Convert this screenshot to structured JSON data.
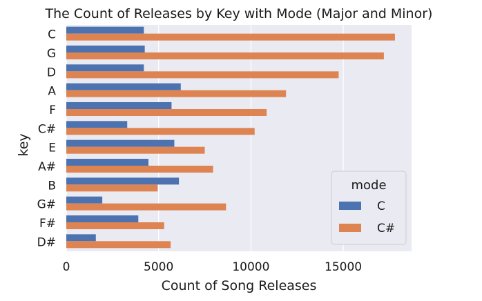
{
  "chart_data": {
    "type": "bar",
    "orientation": "horizontal",
    "title": "The Count of Releases by Key with Mode (Major and Minor)",
    "xlabel": "Count of Song Releases",
    "ylabel": "key",
    "xlim": [
      0,
      18700
    ],
    "xticks": [
      0,
      5000,
      10000,
      15000
    ],
    "grid": true,
    "categories": [
      "C",
      "G",
      "D",
      "A",
      "F",
      "C#",
      "E",
      "A#",
      "B",
      "G#",
      "F#",
      "D#"
    ],
    "legend": {
      "title": "mode",
      "placement": "lower-right"
    },
    "series": [
      {
        "name": "C",
        "color": "#4c72b0",
        "values": [
          4200,
          4250,
          4200,
          6200,
          5700,
          3300,
          5850,
          4450,
          6100,
          1950,
          3900,
          1600
        ]
      },
      {
        "name": "C#",
        "color": "#dd8452",
        "values": [
          17800,
          17200,
          14750,
          11900,
          10850,
          10200,
          7500,
          7950,
          4950,
          8650,
          5300,
          5650
        ]
      }
    ]
  }
}
